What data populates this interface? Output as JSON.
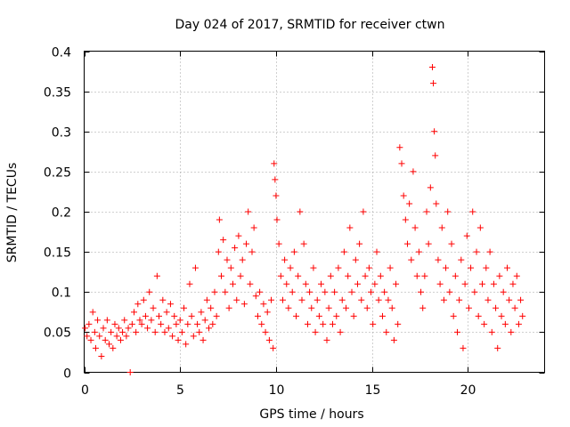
{
  "chart_data": {
    "type": "scatter",
    "title": "Day 024 of 2017, SRMTID for receiver ctwn",
    "xlabel": "GPS time / hours",
    "ylabel": "SRMTID / TECUs",
    "xlim": [
      0,
      24
    ],
    "ylim": [
      0,
      0.4
    ],
    "xticks": [
      0,
      5,
      10,
      15,
      20
    ],
    "yticks": [
      0,
      0.05,
      0.1,
      0.15,
      0.2,
      0.25,
      0.3,
      0.35,
      0.4
    ],
    "xtick_labels": [
      "0",
      "5",
      "10",
      "15",
      "20"
    ],
    "ytick_labels": [
      "0",
      "0.05",
      "0.1",
      "0.15",
      "0.2",
      "0.25",
      "0.3",
      "0.35",
      "0.4"
    ],
    "grid": true,
    "marker": "plus",
    "color": "#ff0000",
    "series": [
      {
        "name": "SRMTID",
        "points": [
          [
            0.05,
            0.055
          ],
          [
            0.15,
            0.045
          ],
          [
            0.25,
            0.06
          ],
          [
            0.35,
            0.04
          ],
          [
            0.45,
            0.075
          ],
          [
            0.55,
            0.05
          ],
          [
            0.6,
            0.03
          ],
          [
            0.7,
            0.065
          ],
          [
            0.8,
            0.045
          ],
          [
            0.9,
            0.02
          ],
          [
            1.0,
            0.055
          ],
          [
            1.1,
            0.04
          ],
          [
            1.2,
            0.065
          ],
          [
            1.3,
            0.035
          ],
          [
            1.4,
            0.05
          ],
          [
            1.5,
            0.03
          ],
          [
            1.6,
            0.06
          ],
          [
            1.7,
            0.045
          ],
          [
            1.8,
            0.055
          ],
          [
            1.9,
            0.04
          ],
          [
            2.0,
            0.05
          ],
          [
            2.1,
            0.065
          ],
          [
            2.2,
            0.045
          ],
          [
            2.3,
            0.055
          ],
          [
            2.4,
            0.0
          ],
          [
            2.5,
            0.06
          ],
          [
            2.6,
            0.075
          ],
          [
            2.7,
            0.05
          ],
          [
            2.8,
            0.085
          ],
          [
            2.9,
            0.065
          ],
          [
            3.0,
            0.06
          ],
          [
            3.1,
            0.09
          ],
          [
            3.2,
            0.07
          ],
          [
            3.3,
            0.055
          ],
          [
            3.4,
            0.1
          ],
          [
            3.5,
            0.065
          ],
          [
            3.6,
            0.08
          ],
          [
            3.7,
            0.05
          ],
          [
            3.8,
            0.12
          ],
          [
            3.9,
            0.07
          ],
          [
            4.0,
            0.06
          ],
          [
            4.1,
            0.09
          ],
          [
            4.2,
            0.05
          ],
          [
            4.3,
            0.075
          ],
          [
            4.4,
            0.055
          ],
          [
            4.5,
            0.085
          ],
          [
            4.6,
            0.045
          ],
          [
            4.7,
            0.07
          ],
          [
            4.8,
            0.06
          ],
          [
            4.9,
            0.04
          ],
          [
            5.0,
            0.065
          ],
          [
            5.1,
            0.05
          ],
          [
            5.2,
            0.08
          ],
          [
            5.3,
            0.035
          ],
          [
            5.4,
            0.06
          ],
          [
            5.5,
            0.11
          ],
          [
            5.6,
            0.07
          ],
          [
            5.7,
            0.045
          ],
          [
            5.8,
            0.13
          ],
          [
            5.9,
            0.06
          ],
          [
            6.0,
            0.05
          ],
          [
            6.1,
            0.075
          ],
          [
            6.2,
            0.04
          ],
          [
            6.3,
            0.065
          ],
          [
            6.4,
            0.09
          ],
          [
            6.5,
            0.055
          ],
          [
            6.6,
            0.08
          ],
          [
            6.7,
            0.06
          ],
          [
            6.8,
            0.1
          ],
          [
            6.9,
            0.07
          ],
          [
            7.0,
            0.15
          ],
          [
            7.05,
            0.19
          ],
          [
            7.15,
            0.12
          ],
          [
            7.25,
            0.165
          ],
          [
            7.35,
            0.1
          ],
          [
            7.45,
            0.14
          ],
          [
            7.55,
            0.08
          ],
          [
            7.65,
            0.13
          ],
          [
            7.75,
            0.11
          ],
          [
            7.85,
            0.155
          ],
          [
            7.95,
            0.09
          ],
          [
            8.05,
            0.17
          ],
          [
            8.15,
            0.12
          ],
          [
            8.25,
            0.14
          ],
          [
            8.35,
            0.085
          ],
          [
            8.45,
            0.16
          ],
          [
            8.55,
            0.2
          ],
          [
            8.65,
            0.11
          ],
          [
            8.75,
            0.15
          ],
          [
            8.85,
            0.18
          ],
          [
            8.95,
            0.095
          ],
          [
            9.05,
            0.07
          ],
          [
            9.15,
            0.1
          ],
          [
            9.25,
            0.06
          ],
          [
            9.35,
            0.085
          ],
          [
            9.45,
            0.05
          ],
          [
            9.55,
            0.075
          ],
          [
            9.65,
            0.04
          ],
          [
            9.75,
            0.09
          ],
          [
            9.85,
            0.03
          ],
          [
            9.9,
            0.26
          ],
          [
            9.95,
            0.24
          ],
          [
            10.0,
            0.22
          ],
          [
            10.05,
            0.19
          ],
          [
            10.15,
            0.16
          ],
          [
            10.25,
            0.12
          ],
          [
            10.35,
            0.09
          ],
          [
            10.45,
            0.14
          ],
          [
            10.55,
            0.11
          ],
          [
            10.65,
            0.08
          ],
          [
            10.75,
            0.13
          ],
          [
            10.85,
            0.1
          ],
          [
            10.95,
            0.15
          ],
          [
            11.05,
            0.07
          ],
          [
            11.15,
            0.12
          ],
          [
            11.25,
            0.2
          ],
          [
            11.35,
            0.09
          ],
          [
            11.45,
            0.16
          ],
          [
            11.55,
            0.11
          ],
          [
            11.65,
            0.06
          ],
          [
            11.75,
            0.1
          ],
          [
            11.85,
            0.08
          ],
          [
            11.95,
            0.13
          ],
          [
            12.05,
            0.05
          ],
          [
            12.15,
            0.09
          ],
          [
            12.25,
            0.07
          ],
          [
            12.35,
            0.11
          ],
          [
            12.45,
            0.06
          ],
          [
            12.55,
            0.1
          ],
          [
            12.65,
            0.04
          ],
          [
            12.75,
            0.08
          ],
          [
            12.85,
            0.12
          ],
          [
            12.95,
            0.06
          ],
          [
            13.05,
            0.1
          ],
          [
            13.15,
            0.07
          ],
          [
            13.25,
            0.13
          ],
          [
            13.35,
            0.05
          ],
          [
            13.45,
            0.09
          ],
          [
            13.55,
            0.15
          ],
          [
            13.65,
            0.08
          ],
          [
            13.75,
            0.12
          ],
          [
            13.85,
            0.18
          ],
          [
            13.95,
            0.1
          ],
          [
            14.05,
            0.07
          ],
          [
            14.15,
            0.14
          ],
          [
            14.25,
            0.11
          ],
          [
            14.35,
            0.16
          ],
          [
            14.45,
            0.09
          ],
          [
            14.55,
            0.2
          ],
          [
            14.65,
            0.12
          ],
          [
            14.75,
            0.08
          ],
          [
            14.85,
            0.13
          ],
          [
            14.95,
            0.1
          ],
          [
            15.05,
            0.06
          ],
          [
            15.15,
            0.11
          ],
          [
            15.25,
            0.15
          ],
          [
            15.35,
            0.09
          ],
          [
            15.45,
            0.12
          ],
          [
            15.55,
            0.07
          ],
          [
            15.65,
            0.1
          ],
          [
            15.75,
            0.05
          ],
          [
            15.85,
            0.09
          ],
          [
            15.95,
            0.13
          ],
          [
            16.05,
            0.08
          ],
          [
            16.15,
            0.04
          ],
          [
            16.25,
            0.11
          ],
          [
            16.35,
            0.06
          ],
          [
            16.45,
            0.28
          ],
          [
            16.55,
            0.26
          ],
          [
            16.65,
            0.22
          ],
          [
            16.75,
            0.19
          ],
          [
            16.85,
            0.16
          ],
          [
            16.95,
            0.21
          ],
          [
            17.05,
            0.14
          ],
          [
            17.15,
            0.25
          ],
          [
            17.25,
            0.18
          ],
          [
            17.35,
            0.12
          ],
          [
            17.45,
            0.15
          ],
          [
            17.55,
            0.1
          ],
          [
            17.65,
            0.08
          ],
          [
            17.75,
            0.12
          ],
          [
            17.85,
            0.2
          ],
          [
            17.95,
            0.16
          ],
          [
            18.05,
            0.23
          ],
          [
            18.15,
            0.38
          ],
          [
            18.2,
            0.36
          ],
          [
            18.25,
            0.3
          ],
          [
            18.3,
            0.27
          ],
          [
            18.35,
            0.21
          ],
          [
            18.45,
            0.14
          ],
          [
            18.55,
            0.11
          ],
          [
            18.65,
            0.18
          ],
          [
            18.75,
            0.09
          ],
          [
            18.85,
            0.13
          ],
          [
            18.95,
            0.2
          ],
          [
            19.05,
            0.1
          ],
          [
            19.15,
            0.16
          ],
          [
            19.25,
            0.07
          ],
          [
            19.35,
            0.12
          ],
          [
            19.45,
            0.05
          ],
          [
            19.55,
            0.09
          ],
          [
            19.65,
            0.14
          ],
          [
            19.75,
            0.03
          ],
          [
            19.85,
            0.11
          ],
          [
            19.95,
            0.17
          ],
          [
            20.05,
            0.08
          ],
          [
            20.15,
            0.13
          ],
          [
            20.25,
            0.2
          ],
          [
            20.35,
            0.1
          ],
          [
            20.45,
            0.15
          ],
          [
            20.55,
            0.07
          ],
          [
            20.65,
            0.18
          ],
          [
            20.75,
            0.11
          ],
          [
            20.85,
            0.06
          ],
          [
            20.95,
            0.13
          ],
          [
            21.05,
            0.09
          ],
          [
            21.15,
            0.15
          ],
          [
            21.25,
            0.05
          ],
          [
            21.35,
            0.11
          ],
          [
            21.45,
            0.08
          ],
          [
            21.55,
            0.03
          ],
          [
            21.65,
            0.12
          ],
          [
            21.75,
            0.07
          ],
          [
            21.85,
            0.1
          ],
          [
            21.95,
            0.06
          ],
          [
            22.05,
            0.13
          ],
          [
            22.15,
            0.09
          ],
          [
            22.25,
            0.05
          ],
          [
            22.35,
            0.11
          ],
          [
            22.45,
            0.08
          ],
          [
            22.55,
            0.12
          ],
          [
            22.65,
            0.06
          ],
          [
            22.75,
            0.09
          ],
          [
            22.85,
            0.07
          ]
        ]
      }
    ]
  }
}
